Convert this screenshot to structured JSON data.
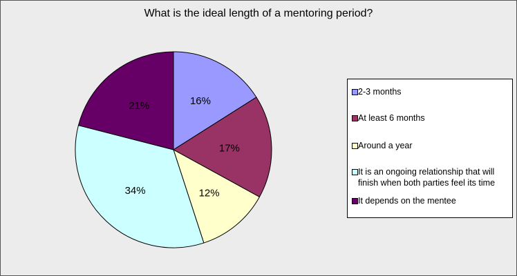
{
  "chart_data": {
    "type": "pie",
    "title": "What is the ideal length of a mentoring period?",
    "legend_position": "right",
    "slices": [
      {
        "label": "2-3 months",
        "value": 16,
        "display": "16%",
        "color": "#9999ff"
      },
      {
        "label": "At least 6 months",
        "value": 17,
        "display": "17%",
        "color": "#993366"
      },
      {
        "label": "Around a year",
        "value": 12,
        "display": "12%",
        "color": "#ffffcc"
      },
      {
        "label": "It is an ongoing relationship that will finish when both parties feel its time",
        "value": 34,
        "display": "34%",
        "color": "#ccffff"
      },
      {
        "label": "It depends on the mentee",
        "value": 21,
        "display": "21%",
        "color": "#660066"
      }
    ]
  }
}
